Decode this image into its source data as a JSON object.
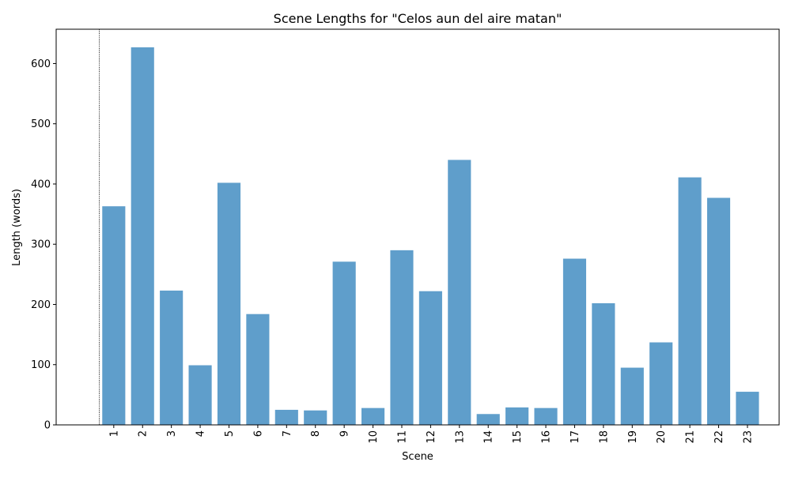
{
  "chart_data": {
    "type": "bar",
    "title": "Scene Lengths for \"Celos aun del aire matan\"",
    "xlabel": "Scene",
    "ylabel": "Length (words)",
    "categories": [
      "1",
      "2",
      "3",
      "4",
      "5",
      "6",
      "7",
      "8",
      "9",
      "10",
      "11",
      "12",
      "13",
      "14",
      "15",
      "16",
      "17",
      "18",
      "19",
      "20",
      "21",
      "22",
      "23"
    ],
    "values": [
      363,
      627,
      223,
      99,
      402,
      184,
      25,
      24,
      271,
      28,
      290,
      222,
      440,
      18,
      29,
      28,
      276,
      202,
      95,
      137,
      411,
      377,
      55
    ],
    "ylim": [
      0,
      657
    ],
    "yticks": [
      0,
      100,
      200,
      300,
      400,
      500,
      600
    ],
    "bar_color": "#5f9ecb",
    "marker_line": {
      "x": 0.5,
      "style": "dotted",
      "color": "#000000"
    },
    "grid": false,
    "legend": "none"
  }
}
